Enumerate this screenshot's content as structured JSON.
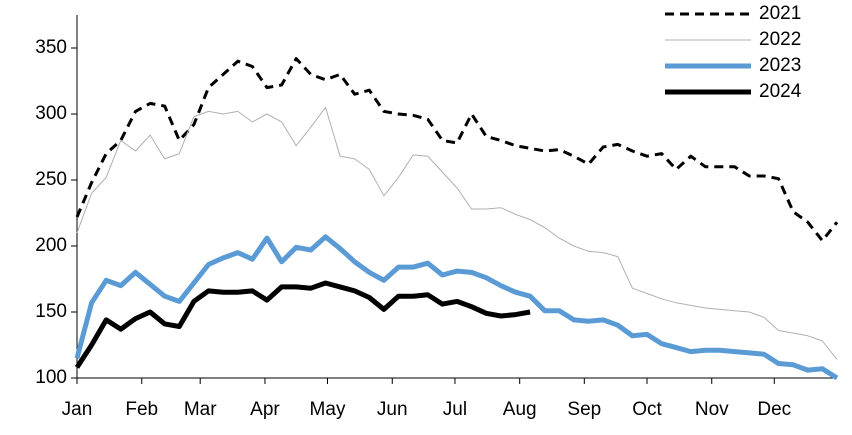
{
  "chart_data": {
    "type": "line",
    "x": [
      0,
      1,
      2,
      3,
      4,
      5,
      6,
      7,
      8,
      9,
      10,
      11,
      12,
      13,
      14,
      15,
      16,
      17,
      18,
      19,
      20,
      21,
      22,
      23,
      24,
      25,
      26,
      27,
      28,
      29,
      30,
      31,
      32,
      33,
      34,
      35,
      36,
      37,
      38,
      39,
      40,
      41,
      42,
      43,
      44,
      45,
      46,
      47,
      48,
      49,
      50,
      51,
      52
    ],
    "xlim": [
      0,
      52
    ],
    "xticks": [
      {
        "value": 0,
        "label": "Jan"
      },
      {
        "value": 4.43,
        "label": "Feb"
      },
      {
        "value": 8.43,
        "label": "Mar"
      },
      {
        "value": 12.86,
        "label": "Apr"
      },
      {
        "value": 17.14,
        "label": "May"
      },
      {
        "value": 21.57,
        "label": "Jun"
      },
      {
        "value": 25.86,
        "label": "Jul"
      },
      {
        "value": 30.29,
        "label": "Aug"
      },
      {
        "value": 34.71,
        "label": "Sep"
      },
      {
        "value": 39,
        "label": "Oct"
      },
      {
        "value": 43.43,
        "label": "Nov"
      },
      {
        "value": 47.71,
        "label": "Dec"
      }
    ],
    "ylim": [
      100,
      375
    ],
    "yticks": [
      100,
      150,
      200,
      250,
      300,
      350
    ],
    "legend": "top-right",
    "series": [
      {
        "name": "2021",
        "color": "#000000",
        "style": "dashed",
        "width": 3,
        "values": [
          222,
          248,
          270,
          280,
          302,
          308,
          306,
          280,
          292,
          320,
          330,
          340,
          336,
          320,
          322,
          342,
          330,
          326,
          330,
          315,
          318,
          302,
          300,
          299,
          296,
          280,
          278,
          300,
          283,
          280,
          276,
          274,
          272,
          273,
          268,
          262,
          275,
          277,
          272,
          268,
          270,
          258,
          268,
          260,
          260,
          260,
          253,
          253,
          251,
          226,
          218,
          204,
          218
        ]
      },
      {
        "name": "2022",
        "color": "#b0b0b0",
        "style": "solid",
        "width": 1,
        "values": [
          210,
          240,
          252,
          280,
          272,
          284,
          266,
          270,
          298,
          302,
          300,
          302,
          294,
          300,
          294,
          276,
          290,
          305,
          268,
          266,
          258,
          238,
          252,
          269,
          268,
          256,
          244,
          228,
          228,
          229,
          224,
          220,
          214,
          206,
          200,
          196,
          195,
          192,
          168,
          164,
          160,
          157,
          155,
          153,
          152,
          151,
          150,
          146,
          136,
          134,
          132,
          128,
          114
        ]
      },
      {
        "name": "2023",
        "color": "#5b9bd5",
        "style": "solid",
        "width": 5,
        "values": [
          115,
          157,
          174,
          170,
          180,
          171,
          162,
          158,
          172,
          186,
          191,
          195,
          190,
          206,
          188,
          199,
          197,
          207,
          198,
          188,
          180,
          174,
          184,
          184,
          187,
          178,
          181,
          180,
          176,
          170,
          165,
          162,
          151,
          151,
          144,
          143,
          144,
          140,
          132,
          133,
          126,
          123,
          120,
          121,
          121,
          120,
          119,
          118,
          111,
          110,
          106,
          107,
          100
        ]
      },
      {
        "name": "2024",
        "color": "#000000",
        "style": "solid",
        "width": 5,
        "values": [
          108,
          125,
          144,
          137,
          145,
          150,
          141,
          139,
          158,
          166,
          165,
          165,
          166,
          159,
          169,
          169,
          168,
          172,
          169,
          166,
          161,
          152,
          162,
          162,
          163,
          156,
          158,
          154,
          149,
          147,
          148,
          150,
          null,
          null,
          null,
          null,
          null,
          null,
          null,
          null,
          null,
          null,
          null,
          null,
          null,
          null,
          null,
          null,
          null,
          null,
          null,
          null,
          null
        ]
      }
    ]
  }
}
